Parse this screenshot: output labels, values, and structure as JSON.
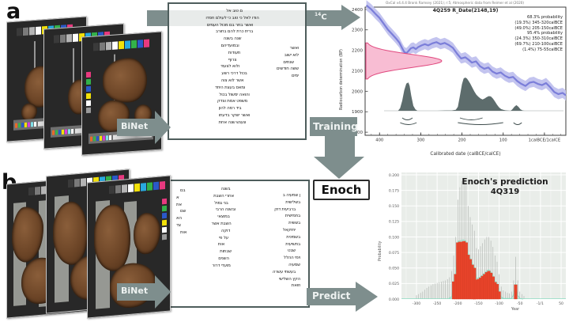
{
  "figure": {
    "panel_a_label": "a",
    "panel_b_label": "b",
    "arrows": {
      "binet_a": "BiNet",
      "binet_b": "BiNet",
      "c14_sup": "14",
      "c14_base": "C",
      "training": "Training",
      "predict": "Predict"
    },
    "enoch_label": "Enoch",
    "colors": {
      "arrow": "#7e8e8d",
      "box_border": "#4e5d5c",
      "calibration_curve": "#7b7ed9",
      "calibration_band": "#c3c4ef",
      "rdate_fill": "#f8bdd3",
      "rdate_stroke": "#e0487e",
      "posterior": "#5d6c6c",
      "bar_red": "#e7432a",
      "envelope_green": "#8edcc2",
      "plot_bg": "#e9ede9"
    }
  },
  "media": {
    "colorbar": [
      "#3a3a3a",
      "#7a7a7a",
      "#b5b5b5",
      "#ffffff",
      "#f2e10a",
      "#29a9e0",
      "#33b24a",
      "#2b59c9",
      "#e8397f"
    ],
    "ministrip": [
      "#e86a2a",
      "#3ab24a",
      "#2b59c9",
      "#f2e10a",
      "#d93ad9",
      "#7fe0e8",
      "#ffffff"
    ],
    "vstrip": [
      "#e8397f",
      "#33b24a",
      "#2b59c9",
      "#f2e10a",
      "#ffffff",
      "#9a9a9a"
    ]
  },
  "script_a": {
    "main": [
      "ם טוב אל",
      "הודו לאל כי טוב כי לעולם חסדו",
      "ואשר בחר בם מכול העמים",
      "ברית כרת להם בחורב",
      "שנה בשנה",
      "ובמועדיהם",
      "תעודות",
      "צרוף",
      "ולוא לצעוד",
      "בכול דרכי רשע",
      "אשר לוא צוה",
      "ומאס בעצת היחד",
      "והואה ימשול בכול",
      "משפט אמת וצדק",
      "ביד רמה להון",
      "ואשר ישקר בדעתו",
      "ונענש שנה אחת"
    ],
    "side": [
      "ואשר",
      "לוא ישוב",
      "שנתים",
      "ששה חודשים",
      "ימים"
    ]
  },
  "script_b": {
    "margin": [
      "בם",
      "א",
      "את",
      "שם",
      "הא",
      "צד",
      "אות"
    ],
    "col1": [
      "בשנה",
      "אחרי השבת",
      "בני גמול",
      "ובשנה הרבי",
      "במוצאי",
      "השבת אשר",
      "דוקה",
      "על פי",
      "אות",
      "שבתות",
      "השנים",
      "מועדי דרור"
    ],
    "col2": [
      "ן שמעיה ב",
      "בשלישית",
      "ברביעית דוק",
      "בחמישית",
      "בששית",
      "יחזקאל",
      "בשמינית",
      "בתשיעית",
      "שבט",
      "וימי ההלל",
      "שמעיה",
      "בעשתי עשרה",
      "הקץ השלישי",
      "וזואת"
    ]
  },
  "chart_data": [
    {
      "type": "area",
      "name": "oxcal_calibration",
      "citation": "OxCal v4.4.4 Bronk Ramsey (2021); r:5; Atmospheric data from Reimer et al (2020)",
      "title": "4Q259 R_Date(2148,19)",
      "annotation_lines": [
        "68.3% probability",
        "(19.3%) 345-320calBCE",
        "(49.0%) 205-150calBCE",
        "95.4% probability",
        "(24.3%) 350-310calBCE",
        "(69.7%) 210-100calBCE",
        "(1.4%) 75-55calBCE"
      ],
      "xlabel": "Calibrated date (calBCE/calCE)",
      "ylabel": "Radiocarbon determination (BP)",
      "xlim": [
        435,
        -52
      ],
      "ylim": [
        1785,
        2430
      ],
      "x_ticks": [
        {
          "v": 400,
          "label": "400"
        },
        {
          "v": 300,
          "label": "300"
        },
        {
          "v": 200,
          "label": "200"
        },
        {
          "v": 100,
          "label": "100"
        },
        {
          "v": 0,
          "label": "1calBCE/1calCE"
        }
      ],
      "y_ticks": [
        1800,
        1900,
        2000,
        2100,
        2200,
        2300,
        2400
      ],
      "r_date": {
        "mean": 2148,
        "sigma": 19
      },
      "calibration_curve": {
        "band": 25,
        "points": [
          [
            432,
            2420
          ],
          [
            420,
            2400
          ],
          [
            410,
            2378
          ],
          [
            400,
            2358
          ],
          [
            390,
            2330
          ],
          [
            380,
            2302
          ],
          [
            370,
            2280
          ],
          [
            360,
            2258
          ],
          [
            352,
            2238
          ],
          [
            345,
            2210
          ],
          [
            340,
            2192
          ],
          [
            335,
            2186
          ],
          [
            330,
            2196
          ],
          [
            324,
            2210
          ],
          [
            318,
            2214
          ],
          [
            312,
            2206
          ],
          [
            306,
            2216
          ],
          [
            298,
            2224
          ],
          [
            290,
            2230
          ],
          [
            282,
            2224
          ],
          [
            272,
            2234
          ],
          [
            262,
            2240
          ],
          [
            252,
            2230
          ],
          [
            242,
            2236
          ],
          [
            232,
            2226
          ],
          [
            222,
            2212
          ],
          [
            212,
            2184
          ],
          [
            202,
            2160
          ],
          [
            192,
            2166
          ],
          [
            184,
            2154
          ],
          [
            176,
            2140
          ],
          [
            166,
            2146
          ],
          [
            156,
            2122
          ],
          [
            146,
            2110
          ],
          [
            136,
            2116
          ],
          [
            126,
            2096
          ],
          [
            116,
            2086
          ],
          [
            106,
            2092
          ],
          [
            96,
            2076
          ],
          [
            86,
            2066
          ],
          [
            76,
            2070
          ],
          [
            66,
            2050
          ],
          [
            56,
            2036
          ],
          [
            46,
            2026
          ],
          [
            36,
            2042
          ],
          [
            26,
            2046
          ],
          [
            16,
            2036
          ],
          [
            6,
            2030
          ],
          [
            -4,
            2040
          ],
          [
            -14,
            2020
          ],
          [
            -24,
            1996
          ],
          [
            -34,
            1986
          ],
          [
            -44,
            1992
          ],
          [
            -52,
            1980
          ]
        ]
      },
      "posterior": [
        [
          355,
          0
        ],
        [
          350,
          0.08
        ],
        [
          345,
          0.3
        ],
        [
          340,
          0.62
        ],
        [
          335,
          0.82
        ],
        [
          330,
          0.85
        ],
        [
          327,
          0.75
        ],
        [
          323,
          0.45
        ],
        [
          318,
          0.15
        ],
        [
          313,
          0.04
        ],
        [
          308,
          0
        ],
        [
          260,
          0
        ],
        [
          240,
          0.01
        ],
        [
          225,
          0.01
        ],
        [
          215,
          0.03
        ],
        [
          210,
          0.12
        ],
        [
          205,
          0.45
        ],
        [
          200,
          0.8
        ],
        [
          196,
          0.97
        ],
        [
          192,
          1.0
        ],
        [
          188,
          0.97
        ],
        [
          184,
          0.9
        ],
        [
          180,
          0.82
        ],
        [
          175,
          0.7
        ],
        [
          170,
          0.58
        ],
        [
          165,
          0.48
        ],
        [
          160,
          0.42
        ],
        [
          155,
          0.37
        ],
        [
          150,
          0.34
        ],
        [
          145,
          0.37
        ],
        [
          140,
          0.41
        ],
        [
          135,
          0.44
        ],
        [
          130,
          0.43
        ],
        [
          125,
          0.37
        ],
        [
          120,
          0.28
        ],
        [
          115,
          0.18
        ],
        [
          110,
          0.1
        ],
        [
          105,
          0.05
        ],
        [
          100,
          0.03
        ],
        [
          95,
          0.015
        ],
        [
          88,
          0.005
        ],
        [
          82,
          0
        ],
        [
          78,
          0.04
        ],
        [
          73,
          0.12
        ],
        [
          68,
          0.17
        ],
        [
          63,
          0.12
        ],
        [
          58,
          0.04
        ],
        [
          53,
          0.01
        ],
        [
          48,
          0
        ]
      ],
      "brackets_68": [
        [
          345,
          320
        ],
        [
          205,
          150
        ]
      ],
      "brackets_95": [
        [
          350,
          310
        ],
        [
          210,
          100
        ],
        [
          75,
          55
        ]
      ]
    },
    {
      "type": "bar",
      "name": "enoch_prediction",
      "title": "Enoch's prediction",
      "subtitle": "4Q319",
      "xlabel": "Year",
      "ylabel": "Probability",
      "xlim": [
        -335,
        55
      ],
      "ylim": [
        0,
        0.2
      ],
      "bin_width_years": 5,
      "x_ticks": [
        {
          "v": -300,
          "label": "-300"
        },
        {
          "v": -250,
          "label": "-250"
        },
        {
          "v": -200,
          "label": "-200"
        },
        {
          "v": -150,
          "label": "-150"
        },
        {
          "v": -100,
          "label": "-100"
        },
        {
          "v": -50,
          "label": "-50"
        },
        {
          "v": -1,
          "label": "-1/1"
        },
        {
          "v": 50,
          "label": "50"
        }
      ],
      "y_ticks": [
        0,
        0.025,
        0.05,
        0.075,
        0.1,
        0.125,
        0.15,
        0.175,
        0.2
      ],
      "bars": [
        [
          -210,
          0.028
        ],
        [
          -205,
          0.04
        ],
        [
          -200,
          0.091
        ],
        [
          -195,
          0.092
        ],
        [
          -190,
          0.092
        ],
        [
          -185,
          0.093
        ],
        [
          -180,
          0.091
        ],
        [
          -175,
          0.071
        ],
        [
          -170,
          0.064
        ],
        [
          -165,
          0.055
        ],
        [
          -160,
          0.05
        ],
        [
          -155,
          0.031
        ],
        [
          -150,
          0.032
        ],
        [
          -145,
          0.034
        ],
        [
          -140,
          0.037
        ],
        [
          -135,
          0.04
        ],
        [
          -130,
          0.043
        ],
        [
          -125,
          0.045
        ],
        [
          -120,
          0.042
        ],
        [
          -115,
          0.036
        ],
        [
          -110,
          0.027
        ],
        [
          -105,
          0.024
        ],
        [
          -100,
          0.012
        ],
        [
          -60,
          0.023
        ]
      ],
      "whiskers": [
        [
          -300,
          0.006
        ],
        [
          -295,
          0.008
        ],
        [
          -290,
          0.01
        ],
        [
          -285,
          0.012
        ],
        [
          -280,
          0.015
        ],
        [
          -275,
          0.018
        ],
        [
          -270,
          0.02
        ],
        [
          -265,
          0.022
        ],
        [
          -260,
          0.024
        ],
        [
          -255,
          0.025
        ],
        [
          -250,
          0.026
        ],
        [
          -245,
          0.027
        ],
        [
          -240,
          0.028
        ],
        [
          -235,
          0.029
        ],
        [
          -230,
          0.03
        ],
        [
          -225,
          0.032
        ],
        [
          -220,
          0.035
        ],
        [
          -215,
          0.045
        ],
        [
          -210,
          0.07
        ],
        [
          -205,
          0.1
        ],
        [
          -200,
          0.16
        ],
        [
          -195,
          0.18
        ],
        [
          -190,
          0.19
        ],
        [
          -185,
          0.192
        ],
        [
          -180,
          0.185
        ],
        [
          -175,
          0.15
        ],
        [
          -170,
          0.132
        ],
        [
          -165,
          0.12
        ],
        [
          -160,
          0.11
        ],
        [
          -155,
          0.082
        ],
        [
          -150,
          0.08
        ],
        [
          -145,
          0.085
        ],
        [
          -140,
          0.09
        ],
        [
          -135,
          0.096
        ],
        [
          -130,
          0.1
        ],
        [
          -125,
          0.1
        ],
        [
          -120,
          0.094
        ],
        [
          -115,
          0.084
        ],
        [
          -110,
          0.07
        ],
        [
          -105,
          0.06
        ],
        [
          -100,
          0.04
        ],
        [
          -95,
          0.02
        ],
        [
          -90,
          0.014
        ],
        [
          -85,
          0.012
        ],
        [
          -80,
          0.01
        ],
        [
          -75,
          0.009
        ],
        [
          -70,
          0.012
        ],
        [
          -65,
          0.03
        ],
        [
          -60,
          0.068
        ],
        [
          -55,
          0.03
        ],
        [
          -50,
          0.012
        ],
        [
          -45,
          0.008
        ],
        [
          -40,
          0.005
        ]
      ],
      "envelope": [
        [
          -222,
          0.001
        ],
        [
          -214,
          0.004
        ],
        [
          -210,
          0.03
        ],
        [
          -205,
          0.042
        ],
        [
          -200,
          0.093
        ],
        [
          -185,
          0.095
        ],
        [
          -180,
          0.093
        ],
        [
          -175,
          0.073
        ],
        [
          -170,
          0.066
        ],
        [
          -165,
          0.057
        ],
        [
          -160,
          0.052
        ],
        [
          -155,
          0.033
        ],
        [
          -150,
          0.034
        ],
        [
          -145,
          0.036
        ],
        [
          -140,
          0.039
        ],
        [
          -135,
          0.042
        ],
        [
          -130,
          0.045
        ],
        [
          -125,
          0.047
        ],
        [
          -120,
          0.044
        ],
        [
          -115,
          0.038
        ],
        [
          -110,
          0.029
        ],
        [
          -105,
          0.026
        ],
        [
          -100,
          0.014
        ],
        [
          -96,
          0.004
        ],
        [
          -90,
          0.001
        ],
        [
          -70,
          0.001
        ],
        [
          -66,
          0.006
        ],
        [
          -60,
          0.025
        ],
        [
          -55,
          0.006
        ],
        [
          -50,
          0.001
        ],
        [
          -42,
          0
        ]
      ]
    }
  ]
}
